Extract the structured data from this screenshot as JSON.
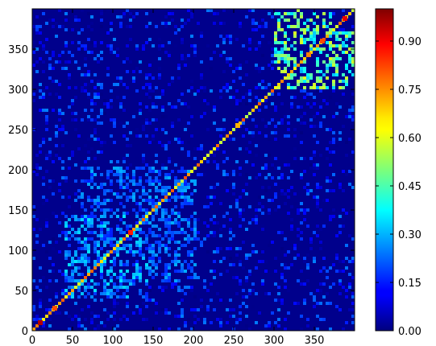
{
  "chart_data": {
    "type": "heatmap",
    "title": "",
    "xlabel": "",
    "ylabel": "",
    "xlim": [
      0,
      400
    ],
    "ylim": [
      0,
      400
    ],
    "x_ticks": [
      "0",
      "50",
      "100",
      "150",
      "200",
      "250",
      "300",
      "350"
    ],
    "y_ticks": [
      "0",
      "50",
      "100",
      "150",
      "200",
      "250",
      "300",
      "350"
    ],
    "x_tick_values": [
      0,
      50,
      100,
      150,
      200,
      250,
      300,
      350
    ],
    "y_tick_values": [
      0,
      50,
      100,
      150,
      200,
      250,
      300,
      350
    ],
    "colormap": "jet",
    "colorbar": {
      "range": [
        0,
        1
      ],
      "ticks": [
        "0.00",
        "0.15",
        "0.30",
        "0.45",
        "0.60",
        "0.75",
        "0.90"
      ],
      "tick_values": [
        0.0,
        0.15,
        0.3,
        0.45,
        0.6,
        0.75,
        0.9
      ]
    },
    "grid": false,
    "description_values": {
      "diagonal": 1.0,
      "background_range": [
        0.0,
        0.15
      ],
      "bright_blocks": [
        {
          "x": [
            300,
            400
          ],
          "y": [
            300,
            370
          ],
          "value_range": [
            0.3,
            0.6
          ]
        },
        {
          "x": [
            40,
            140
          ],
          "y": [
            40,
            140
          ],
          "value_range": [
            0.15,
            0.35
          ]
        },
        {
          "x": [
            140,
            200
          ],
          "y": [
            60,
            200
          ],
          "value_range": [
            0.15,
            0.3
          ]
        }
      ],
      "hot_points": [
        {
          "x": 10,
          "y": 10,
          "value": 0.95
        },
        {
          "x": 28,
          "y": 28,
          "value": 0.8
        },
        {
          "x": 122,
          "y": 122,
          "value": 0.85
        },
        {
          "x": 255,
          "y": 255,
          "value": 0.7
        },
        {
          "x": 343,
          "y": 343,
          "value": 0.75
        },
        {
          "x": 360,
          "y": 360,
          "value": 0.8
        },
        {
          "x": 388,
          "y": 388,
          "value": 0.9
        }
      ]
    }
  }
}
